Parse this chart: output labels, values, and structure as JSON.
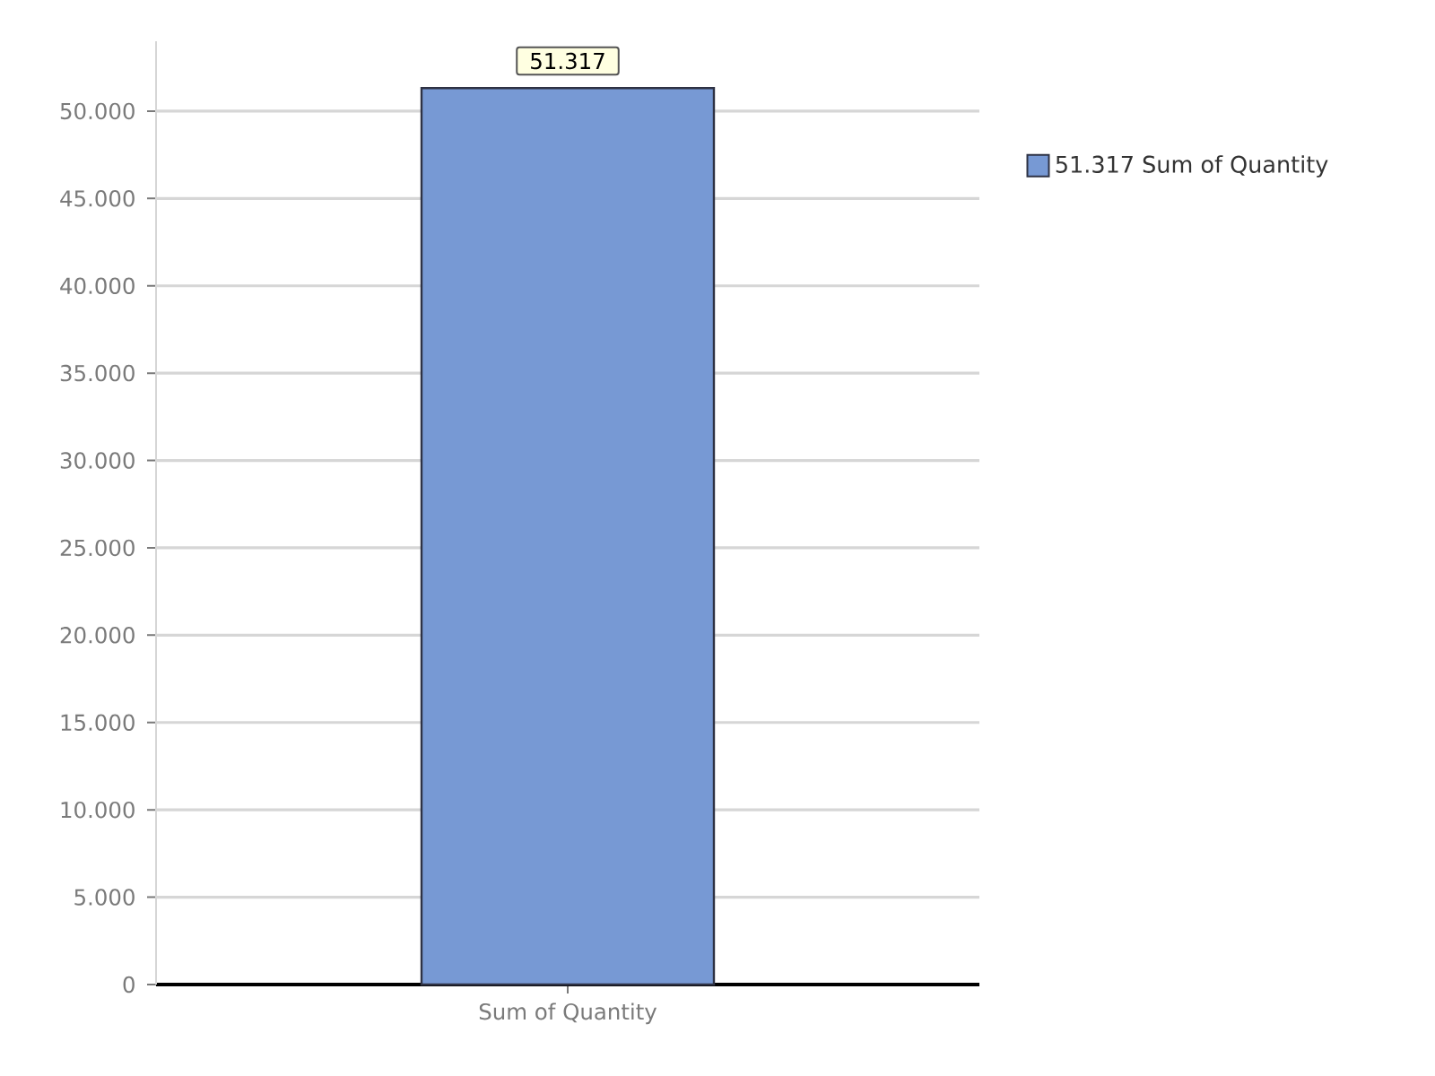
{
  "chart_data": {
    "type": "bar",
    "categories": [
      "Sum of Quantity"
    ],
    "series": [
      {
        "name": "51.317 Sum of Quantity",
        "color": "#7799d4",
        "values": [
          51317
        ],
        "value_labels": [
          "51.317"
        ]
      }
    ],
    "ylim": [
      0,
      54000
    ],
    "yticks": [
      0,
      {
        "value": 5000,
        "label": "5.000"
      },
      {
        "value": 10000,
        "label": "10.000"
      },
      {
        "value": 15000,
        "label": "15.000"
      },
      {
        "value": 20000,
        "label": "20.000"
      },
      {
        "value": 25000,
        "label": "25.000"
      },
      {
        "value": 30000,
        "label": "30.000"
      },
      {
        "value": 35000,
        "label": "35.000"
      },
      {
        "value": 40000,
        "label": "40.000"
      },
      {
        "value": 45000,
        "label": "45.000"
      },
      {
        "value": 50000,
        "label": "50.000"
      }
    ],
    "grid": "y",
    "legend": "right"
  }
}
